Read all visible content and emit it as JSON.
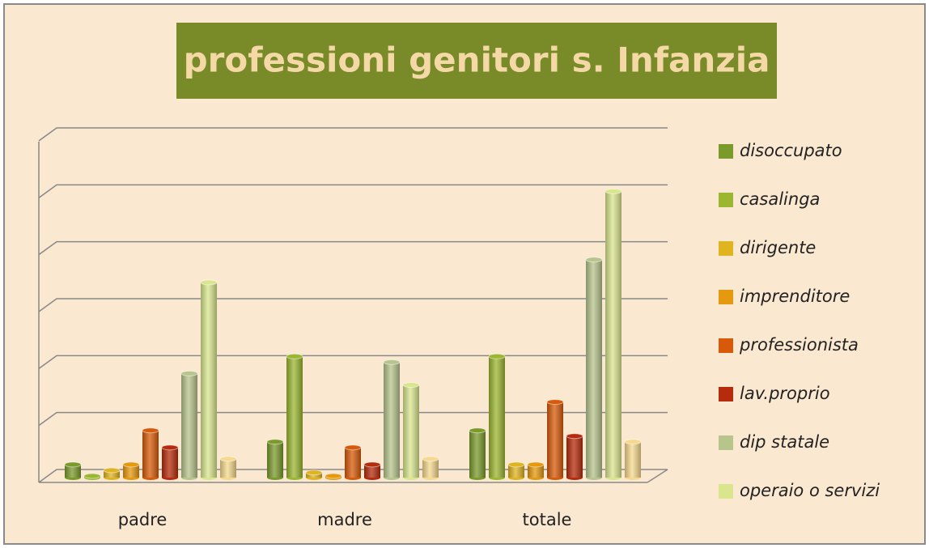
{
  "chart_data": {
    "type": "bar",
    "title": "professioni genitori s. Infanzia",
    "categories": [
      "padre",
      "madre",
      "totale"
    ],
    "series": [
      {
        "name": "disoccupato",
        "color": "#7b9a2c",
        "values": [
          1,
          3,
          4
        ]
      },
      {
        "name": "casalinga",
        "color": "#9bb631",
        "values": [
          0,
          10.5,
          10.5
        ]
      },
      {
        "name": "dirigente",
        "color": "#e0b421",
        "values": [
          0.5,
          0.3,
          1
        ]
      },
      {
        "name": "imprenditore",
        "color": "#e5990f",
        "values": [
          1,
          0,
          1
        ]
      },
      {
        "name": "professionista",
        "color": "#d65a09",
        "values": [
          4,
          2.5,
          6.5
        ]
      },
      {
        "name": "lav.proprio",
        "color": "#b52b0c",
        "values": [
          2.5,
          1,
          3.5
        ]
      },
      {
        "name": "dip statale",
        "color": "#b7c48c",
        "values": [
          9,
          10,
          19
        ]
      },
      {
        "name": "operaio o servizi",
        "color": "#d9e68e",
        "values": [
          17,
          8,
          25
        ]
      },
      {
        "name": null,
        "color": "#f6d98f",
        "values": [
          1.5,
          1.5,
          3
        ]
      }
    ],
    "ylim": [
      0,
      30
    ],
    "yticks": [
      0,
      5,
      10,
      15,
      20,
      25,
      30
    ],
    "grid": true
  }
}
